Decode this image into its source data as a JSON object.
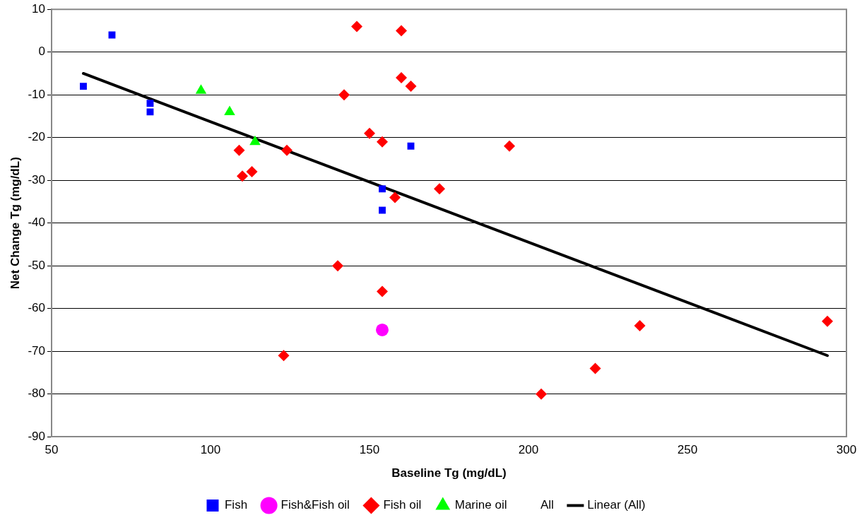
{
  "chart_data": {
    "type": "scatter",
    "xlabel": "Baseline Tg (mg/dL)",
    "ylabel": "Net Change Tg (mg/dL)",
    "xlim": [
      50,
      300
    ],
    "xticks": [
      50,
      100,
      150,
      200,
      250,
      300
    ],
    "ylim": [
      -90,
      10
    ],
    "yticks": [
      -90,
      -80,
      -70,
      -60,
      -50,
      -40,
      -30,
      -20,
      -10,
      0,
      10
    ],
    "grid": "y",
    "legend": "bottom",
    "series": [
      {
        "name": "Fish",
        "type": "scatter",
        "marker": "square",
        "color": "#0000ff",
        "x": [
          60,
          69,
          81,
          81,
          154,
          154,
          163
        ],
        "values": [
          -8,
          4,
          -12,
          -14,
          -32,
          -37,
          -22
        ]
      },
      {
        "name": "Fish&Fish oil",
        "type": "scatter",
        "marker": "circle",
        "color": "#ff00ff",
        "x": [
          154
        ],
        "values": [
          -65
        ]
      },
      {
        "name": "Fish oil",
        "type": "scatter",
        "marker": "diamond",
        "color": "#ff0000",
        "x": [
          146,
          160,
          160,
          163,
          142,
          150,
          154,
          124,
          109,
          110,
          113,
          158,
          172,
          194,
          140,
          154,
          123,
          235,
          221,
          204,
          294
        ],
        "values": [
          6,
          5,
          -6,
          -8,
          -10,
          -19,
          -21,
          -23,
          -23,
          -29,
          -28,
          -34,
          -32,
          -22,
          -50,
          -56,
          -71,
          -64,
          -74,
          -80,
          -63
        ]
      },
      {
        "name": "Marine oil",
        "type": "scatter",
        "marker": "triangle",
        "color": "#00ff00",
        "x": [
          97,
          106,
          114
        ],
        "values": [
          -9,
          -14,
          -21
        ]
      },
      {
        "name": "All",
        "type": "scatter",
        "marker": "none",
        "color": "#000000"
      },
      {
        "name": "Linear (All)",
        "type": "line",
        "marker": "none",
        "line_style": "solid",
        "color": "#000000",
        "x": [
          60,
          294
        ],
        "values": [
          -5,
          -71
        ]
      }
    ]
  }
}
